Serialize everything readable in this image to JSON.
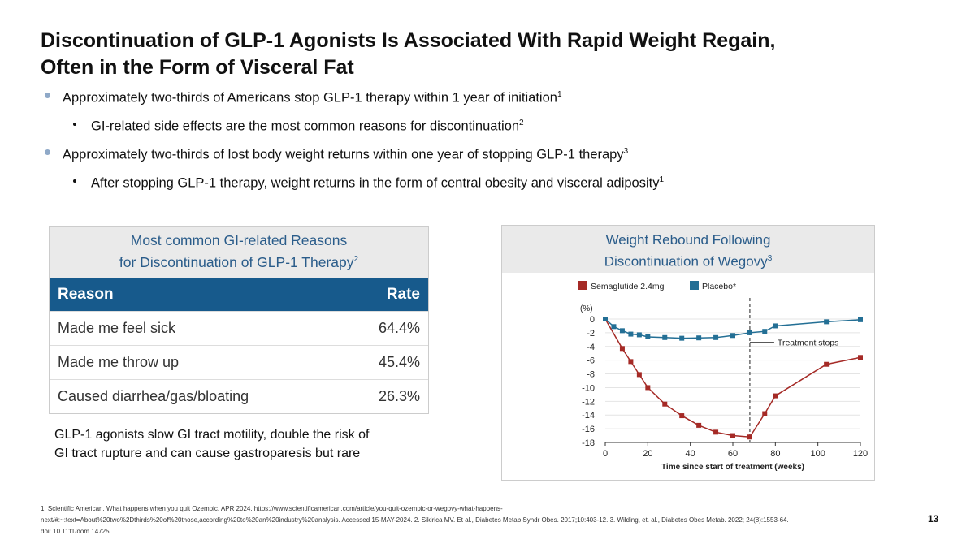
{
  "title_line1": "Discontinuation of GLP-1 Agonists Is Associated With Rapid Weight Regain,",
  "title_line2": "Often in the Form of Visceral Fat",
  "bullets": [
    {
      "text": "Approximately two-thirds of Americans stop GLP-1 therapy within 1 year of initiation",
      "sup": "1"
    },
    {
      "text": "GI-related side effects are the most common reasons for discontinuation",
      "sup": "2"
    },
    {
      "text": "Approximately two-thirds of lost body weight returns within one year of stopping GLP-1 therapy",
      "sup": "3"
    },
    {
      "text": "After stopping GLP-1 therapy, weight returns in the form of central obesity and visceral adiposity",
      "sup": "1"
    }
  ],
  "table": {
    "title_line1": "Most common GI-related Reasons",
    "title_line2": "for Discontinuation of GLP-1 Therapy",
    "title_sup": "2",
    "col_reason": "Reason",
    "col_rate": "Rate",
    "rows": [
      {
        "reason": "Made me feel sick",
        "rate": "64.4%"
      },
      {
        "reason": "Made me throw up",
        "rate": "45.4%"
      },
      {
        "reason": "Caused diarrhea/gas/bloating",
        "rate": "26.3%"
      }
    ]
  },
  "note_line1": "GLP-1 agonists slow GI tract motility, double the risk of",
  "note_line2": "GI tract rupture and can cause gastroparesis but rare",
  "chart_data": {
    "type": "line",
    "title_line1": "Weight Rebound Following",
    "title_line2": "Discontinuation of Wegovy",
    "title_sup": "3",
    "ylabel": "(%)",
    "xlabel": "Time since start of treatment (weeks)",
    "xlim": [
      0,
      120
    ],
    "ylim": [
      -18,
      0
    ],
    "xticks": [
      "0",
      "20",
      "40",
      "60",
      "80",
      "100",
      "120"
    ],
    "yticks": [
      "0",
      "-2",
      "-4",
      "-6",
      "-8",
      "-10",
      "-12",
      "-14",
      "-16",
      "-18"
    ],
    "annotation": "Treatment stops",
    "annotation_x": 68,
    "series": [
      {
        "name": "Semaglutide 2.4mg",
        "color": "#a52a26",
        "x": [
          0,
          8,
          12,
          16,
          20,
          28,
          36,
          44,
          52,
          60,
          68,
          75,
          80,
          104,
          120
        ],
        "y": [
          0,
          -4.3,
          -6.2,
          -8.1,
          -10,
          -12.4,
          -14.1,
          -15.5,
          -16.5,
          -17,
          -17.2,
          -13.8,
          -11.2,
          -6.6,
          -5.6
        ]
      },
      {
        "name": "Placebo*",
        "color": "#236f95",
        "x": [
          0,
          4,
          8,
          12,
          16,
          20,
          28,
          36,
          44,
          52,
          60,
          68,
          75,
          80,
          104,
          120
        ],
        "y": [
          0,
          -1.1,
          -1.7,
          -2.2,
          -2.3,
          -2.6,
          -2.7,
          -2.8,
          -2.75,
          -2.7,
          -2.4,
          -2.0,
          -1.8,
          -1.0,
          -0.4,
          -0.1
        ]
      }
    ]
  },
  "footnote": "1. Scientific American. What happens when you quit Ozempic. APR 2024. https://www.scientificamerican.com/article/you-quit-ozempic-or-wegovy-what-happens-next/#:~:text=About%20two%2Dthirds%20of%20those,according%20to%20an%20industry%20analysis. Accessed 15-MAY-2024. 2. Sikirica MV. Et al., Diabetes Metab Syndr Obes. 2017;10:403-12. 3. Wilding, et. al., Diabetes Obes Metab. 2022; 24(8):1553-64. doi: 10.1111/dom.14725.",
  "page_number": "13"
}
